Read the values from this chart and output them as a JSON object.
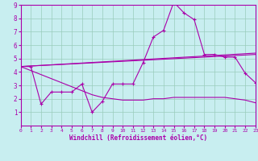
{
  "xlabel": "Windchill (Refroidissement éolien,°C)",
  "xlim": [
    0,
    23
  ],
  "ylim": [
    0,
    9
  ],
  "xticks": [
    0,
    1,
    2,
    3,
    4,
    5,
    6,
    7,
    8,
    9,
    10,
    11,
    12,
    13,
    14,
    15,
    16,
    17,
    18,
    19,
    20,
    21,
    22,
    23
  ],
  "yticks": [
    1,
    2,
    3,
    4,
    5,
    6,
    7,
    8,
    9
  ],
  "bg_color": "#c8eef0",
  "line_color": "#aa00aa",
  "grid_color": "#99ccbb",
  "lines": [
    {
      "x": [
        0,
        1,
        2,
        3,
        4,
        5,
        6,
        7,
        8,
        9,
        10,
        11,
        12,
        13,
        14,
        15,
        16,
        17,
        18,
        19,
        20,
        21,
        22,
        23
      ],
      "y": [
        4.4,
        4.4,
        1.6,
        2.5,
        2.5,
        2.5,
        3.1,
        1.0,
        1.8,
        3.1,
        3.1,
        3.1,
        4.7,
        6.6,
        7.1,
        9.2,
        8.4,
        7.9,
        5.3,
        5.3,
        5.1,
        5.1,
        3.9,
        3.2
      ],
      "marker": true
    },
    {
      "x": [
        0,
        23
      ],
      "y": [
        4.4,
        5.3
      ],
      "marker": false
    },
    {
      "x": [
        0,
        23
      ],
      "y": [
        4.4,
        5.4
      ],
      "marker": false
    },
    {
      "x": [
        0,
        1,
        2,
        3,
        4,
        5,
        6,
        7,
        8,
        9,
        10,
        11,
        12,
        13,
        14,
        15,
        16,
        17,
        18,
        19,
        20,
        21,
        22,
        23
      ],
      "y": [
        4.4,
        4.1,
        3.8,
        3.5,
        3.2,
        2.9,
        2.6,
        2.3,
        2.1,
        2.0,
        1.9,
        1.9,
        1.9,
        2.0,
        2.0,
        2.1,
        2.1,
        2.1,
        2.1,
        2.1,
        2.1,
        2.0,
        1.9,
        1.7
      ],
      "marker": false
    }
  ]
}
